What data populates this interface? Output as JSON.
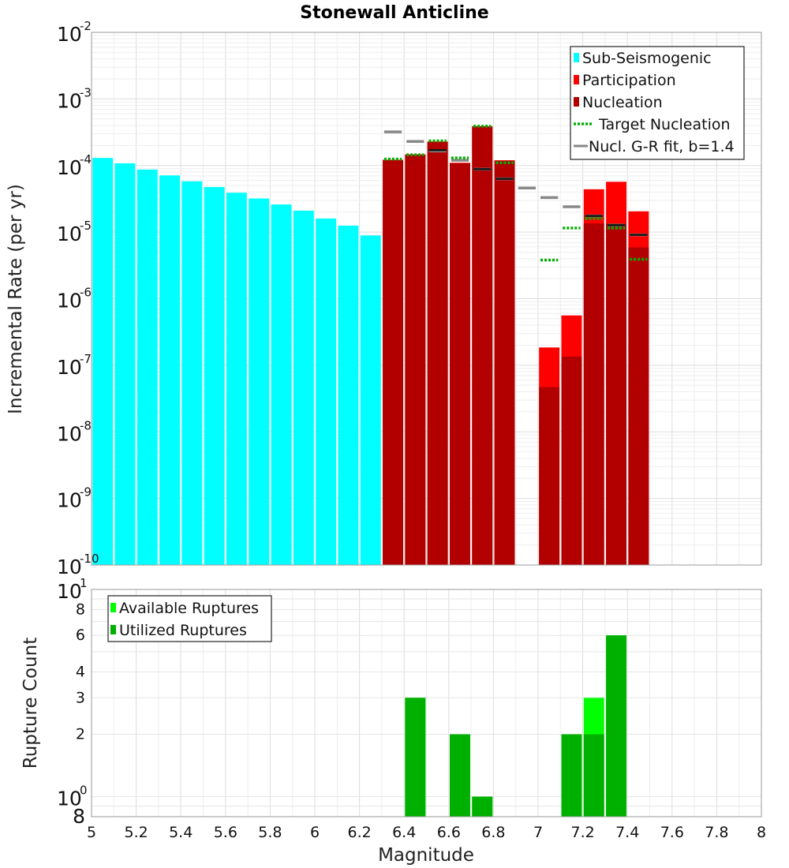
{
  "chart_data": [
    {
      "type": "bar",
      "title": "Stonewall Anticline",
      "xlabel": "",
      "ylabel": "Incremental Rate (per yr)",
      "xlim": [
        5,
        8
      ],
      "yscale": "log",
      "ylim": [
        1e-10,
        0.01
      ],
      "ytick_exponents": [
        "-10",
        "-9",
        "-8",
        "-7",
        "-6",
        "-5",
        "-4",
        "-3",
        "-2"
      ],
      "bin_width": 0.1,
      "legend_position": "top-right",
      "legend": [
        {
          "label": "Sub-Seismogenic",
          "color": "#00ffff",
          "kind": "bar"
        },
        {
          "label": "Participation",
          "color": "#ff0000",
          "kind": "bar"
        },
        {
          "label": "Nucleation",
          "color": "#b20000",
          "kind": "bar"
        },
        {
          "label": "Target Nucleation",
          "color": "#00b000",
          "kind": "dotted"
        },
        {
          "label": "Nucl. G-R fit, b=1.4",
          "color": "#888888",
          "kind": "line"
        }
      ],
      "series": [
        {
          "name": "Sub-Seismogenic",
          "x": [
            5.05,
            5.15,
            5.25,
            5.35,
            5.45,
            5.55,
            5.65,
            5.75,
            5.85,
            5.95,
            6.05,
            6.15,
            6.25
          ],
          "values": [
            0.00013,
            0.000108,
            8.7e-05,
            7.1e-05,
            5.8e-05,
            4.75e-05,
            3.9e-05,
            3.2e-05,
            2.6e-05,
            2.1e-05,
            1.6e-05,
            1.25e-05,
            8.9e-06
          ]
        },
        {
          "name": "Participation",
          "x": [
            6.35,
            6.45,
            6.55,
            6.65,
            6.75,
            6.85,
            7.05,
            7.15,
            7.25,
            7.35,
            7.45
          ],
          "values": [
            0.000122,
            0.000147,
            0.00023,
            0.00011,
            0.00039,
            0.00012,
            1.85e-07,
            5.6e-07,
            4.4e-05,
            5.7e-05,
            2.05e-05
          ]
        },
        {
          "name": "Nucleation",
          "x": [
            6.35,
            6.45,
            6.55,
            6.65,
            6.75,
            6.85,
            7.05,
            7.15,
            7.25,
            7.35,
            7.45
          ],
          "values": [
            0.00012,
            0.000145,
            0.000225,
            0.000108,
            0.000385,
            0.000118,
            4.7e-08,
            1.35e-07,
            1.35e-05,
            1.35e-05,
            5.9e-06
          ]
        },
        {
          "name": "Target Nucleation",
          "x": [
            6.35,
            6.45,
            6.55,
            6.65,
            6.75,
            6.85,
            7.05,
            7.15,
            7.25,
            7.35,
            7.45
          ],
          "values": [
            0.000125,
            0.000145,
            0.000235,
            0.00013,
            0.00039,
            0.00011,
            3.8e-06,
            1.15e-05,
            1.6e-05,
            1.15e-05,
            3.9e-06
          ]
        },
        {
          "name": "Nucl. G-R fit, b=1.4",
          "x": [
            6.35,
            6.45,
            6.55,
            6.65,
            6.75,
            6.85,
            6.95,
            7.05,
            7.15,
            7.25,
            7.35,
            7.45
          ],
          "values": [
            0.00032,
            0.00023,
            0.000165,
            0.00012,
            8.8e-05,
            6.3e-05,
            4.6e-05,
            3.3e-05,
            2.4e-05,
            1.75e-05,
            1.27e-05,
            9.1e-06
          ]
        }
      ],
      "nucleation_marker_lines": {
        "x": [
          6.55,
          6.75,
          6.85,
          7.25,
          7.35,
          7.45
        ],
        "values": [
          0.00017,
          8.8e-05,
          6.3e-05,
          1.75e-05,
          1.27e-05,
          9.1e-06
        ]
      }
    },
    {
      "type": "bar",
      "title": "",
      "xlabel": "Magnitude",
      "ylabel": "Rupture Count",
      "xlim": [
        5,
        8
      ],
      "yscale": "log",
      "ylim": [
        0.8,
        10
      ],
      "xticks": [
        "5",
        "5.2",
        "5.4",
        "5.6",
        "5.8",
        "6",
        "6.2",
        "6.4",
        "6.6",
        "6.8",
        "7",
        "7.2",
        "7.4",
        "7.6",
        "7.8",
        "8"
      ],
      "yticks_minor": [
        "2",
        "3",
        "4",
        "6",
        "8"
      ],
      "ytick_bottom": "8",
      "ytick_exponents": [
        "0",
        "1"
      ],
      "bin_width": 0.1,
      "legend_position": "top-left",
      "legend": [
        {
          "label": "Available Ruptures",
          "color": "#00ff00",
          "kind": "bar"
        },
        {
          "label": "Utilized Ruptures",
          "color": "#00b000",
          "kind": "bar"
        }
      ],
      "series": [
        {
          "name": "Available Ruptures",
          "x": [
            6.45,
            6.65,
            6.75,
            7.15,
            7.25,
            7.35
          ],
          "values": [
            3,
            2,
            1,
            2,
            3,
            6
          ]
        },
        {
          "name": "Utilized Ruptures",
          "x": [
            6.45,
            6.65,
            6.75,
            7.15,
            7.25,
            7.35
          ],
          "values": [
            3,
            2,
            1,
            2,
            2,
            6
          ]
        }
      ]
    }
  ]
}
